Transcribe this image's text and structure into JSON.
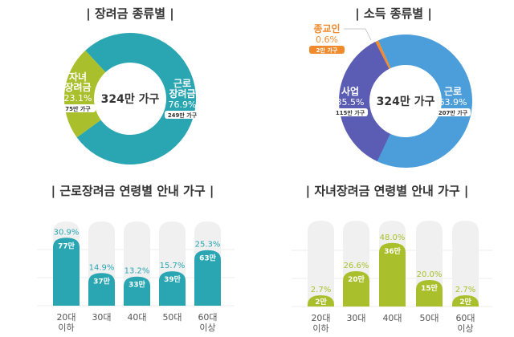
{
  "chart_data": [
    {
      "type": "pie",
      "title": "| 장려금 종류별 |",
      "center_label": "324만 가구",
      "slices": [
        {
          "name": "근로 장려금",
          "percent": 76.9,
          "households": "249만 가구",
          "color": "#2aa6b2"
        },
        {
          "name": "자녀 장려금",
          "percent": 23.1,
          "households": "75만 가구",
          "color": "#a9c02c"
        }
      ]
    },
    {
      "type": "pie",
      "title": "| 소득 종류별 |",
      "center_label": "324만 가구",
      "slices": [
        {
          "name": "근로",
          "percent": 63.9,
          "households": "207만 가구",
          "color": "#4c9edb"
        },
        {
          "name": "사업",
          "percent": 35.5,
          "households": "115만 가구",
          "color": "#5a5db3"
        },
        {
          "name": "종교인",
          "percent": 0.6,
          "households": "2만 가구",
          "color": "#f08a2c"
        }
      ]
    },
    {
      "type": "bar",
      "title": "| 근로장려금 연령별 안내 가구 |",
      "color": "#2aa6b2",
      "categories": [
        "20대\n이하",
        "30대",
        "40대",
        "50대",
        "60대\n이상"
      ],
      "values": [
        77,
        37,
        33,
        39,
        63
      ],
      "value_labels": [
        "77만",
        "37만",
        "33만",
        "39만",
        "63만"
      ],
      "percents": [
        "30.9%",
        "14.9%",
        "13.2%",
        "15.7%",
        "25.3%"
      ]
    },
    {
      "type": "bar",
      "title": "| 자녀장려금 연령별 안내 가구 |",
      "color": "#a9c02c",
      "categories": [
        "20대\n이하",
        "30대",
        "40대",
        "50대",
        "60대\n이상"
      ],
      "values": [
        2,
        20,
        36,
        15,
        2
      ],
      "value_labels": [
        "2만",
        "20만",
        "36만",
        "15만",
        "2만"
      ],
      "percents": [
        "2.7%",
        "26.6%",
        "48.0%",
        "20.0%",
        "2.7%"
      ]
    }
  ]
}
